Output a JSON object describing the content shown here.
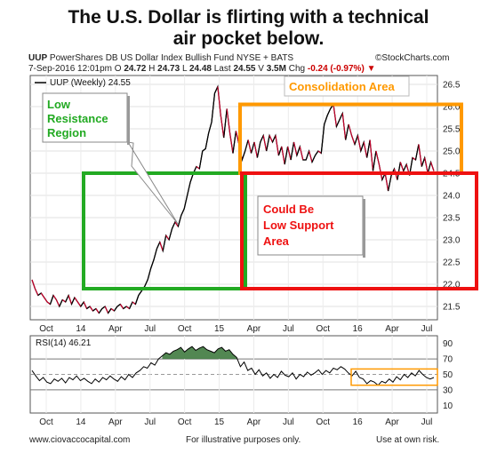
{
  "headline": {
    "line1": "The U.S. Dollar is flirting with a technical",
    "line2": "air pocket below."
  },
  "header": {
    "symbol": "UUP",
    "fund_name": "PowerShares DB US Dollar Index Bullish Fund",
    "exchange": "NYSE + BATS",
    "source": "©StockCharts.com",
    "date": "7-Sep-2016 12:01pm",
    "open_label": "O",
    "open": "24.72",
    "high_label": "H",
    "high": "24.73",
    "low_label": "L",
    "low": "24.48",
    "last_label": "Last",
    "last": "24.55",
    "volume_label": "V",
    "volume": "3.5M",
    "change_label": "Chg",
    "change": "-0.24 (-0.97%)",
    "change_arrow": "▼",
    "change_color": "#cc0000"
  },
  "chart_data": [
    {
      "type": "line",
      "legend": "UUP (Weekly) 24.55",
      "x_tick_labels": [
        "Oct",
        "14",
        "Apr",
        "Jul",
        "Oct",
        "15",
        "Apr",
        "Jul",
        "Oct",
        "16",
        "Apr",
        "Jul"
      ],
      "y_tick_labels": [
        "21.5",
        "22.0",
        "22.5",
        "23.0",
        "23.5",
        "24.0",
        "24.5",
        "25.0",
        "25.5",
        "26.0",
        "26.5"
      ],
      "ylim": [
        21.2,
        26.7
      ],
      "series": [
        {
          "name": "UUP (Weekly)",
          "values": [
            22.1,
            21.9,
            21.75,
            21.8,
            21.7,
            21.6,
            21.55,
            21.75,
            21.65,
            21.5,
            21.65,
            21.6,
            21.75,
            21.55,
            21.7,
            21.6,
            21.5,
            21.6,
            21.45,
            21.5,
            21.4,
            21.45,
            21.35,
            21.45,
            21.5,
            21.35,
            21.45,
            21.4,
            21.5,
            21.55,
            21.45,
            21.5,
            21.45,
            21.6,
            21.55,
            21.75,
            21.85,
            21.95,
            22.1,
            22.35,
            22.55,
            22.8,
            22.95,
            22.75,
            23.1,
            23.0,
            23.25,
            23.4,
            23.3,
            23.55,
            23.7,
            24.0,
            24.3,
            24.5,
            24.65,
            24.6,
            25.0,
            25.05,
            25.4,
            25.65,
            26.3,
            26.45,
            25.8,
            25.3,
            25.95,
            25.4,
            24.95,
            25.45,
            25.15,
            24.8,
            25.0,
            25.25,
            24.95,
            25.2,
            24.85,
            25.2,
            25.35,
            25.0,
            25.35,
            25.2,
            25.35,
            24.9,
            25.1,
            24.7,
            25.1,
            24.8,
            25.2,
            24.9,
            25.1,
            24.8,
            24.8,
            25.0,
            24.75,
            24.9,
            25.0,
            24.95,
            25.6,
            25.8,
            25.95,
            26.05,
            25.55,
            25.7,
            25.85,
            25.25,
            25.6,
            25.35,
            25.15,
            25.35,
            25.0,
            25.2,
            24.85,
            25.25,
            24.55,
            25.0,
            24.7,
            24.35,
            24.5,
            24.1,
            24.45,
            24.6,
            24.35,
            24.75,
            24.55,
            24.7,
            24.45,
            24.85,
            24.8,
            25.15,
            24.65,
            24.85,
            24.5,
            24.75,
            24.55
          ]
        }
      ],
      "annotations": [
        {
          "text_lines": [
            "Low",
            "Resistance",
            "Region"
          ],
          "color": "#22aa22",
          "kind": "box",
          "y_range": [
            21.9,
            24.5
          ]
        },
        {
          "text_lines": [
            "Consolidation Area"
          ],
          "color": "#ff9900",
          "kind": "box",
          "y_range": [
            24.5,
            26.05
          ]
        },
        {
          "text_lines": [
            "Could Be",
            "Low Support",
            "Area"
          ],
          "color": "#ee1111",
          "kind": "box",
          "y_range": [
            21.9,
            24.5
          ]
        }
      ]
    },
    {
      "type": "line",
      "legend": "RSI(14) 46.21",
      "y_tick_labels": [
        "10",
        "30",
        "50",
        "70",
        "90"
      ],
      "ylim": [
        0,
        100
      ],
      "reference_lines": [
        70,
        50,
        30
      ],
      "x_tick_labels": [
        "Oct",
        "14",
        "Apr",
        "Jul",
        "Oct",
        "15",
        "Apr",
        "Jul",
        "Oct",
        "16",
        "Apr",
        "Jul"
      ],
      "series": [
        {
          "name": "RSI(14)",
          "values": [
            55,
            48,
            42,
            46,
            40,
            38,
            44,
            41,
            45,
            39,
            46,
            43,
            48,
            42,
            45,
            41,
            38,
            44,
            40,
            46,
            43,
            48,
            44,
            41,
            47,
            43,
            50,
            46,
            52,
            55,
            60,
            58,
            65,
            62,
            70,
            74,
            78,
            76,
            80,
            82,
            85,
            79,
            83,
            86,
            81,
            84,
            86,
            82,
            80,
            78,
            83,
            85,
            80,
            82,
            76,
            72,
            60,
            66,
            55,
            58,
            50,
            56,
            48,
            52,
            45,
            50,
            46,
            54,
            49,
            47,
            52,
            44,
            50,
            47,
            53,
            49,
            52,
            56,
            50,
            55,
            52,
            58,
            56,
            60,
            57,
            52,
            48,
            54,
            46,
            44,
            38,
            42,
            40,
            36,
            41,
            39,
            44,
            40,
            47,
            43,
            50,
            46,
            52,
            48,
            55,
            50,
            46,
            44,
            46
          ]
        }
      ],
      "annotations": [
        {
          "kind": "box",
          "color": "#ff9900",
          "y_range": [
            36,
            57
          ]
        }
      ]
    }
  ],
  "footer": {
    "website": "www.ciovaccocapital.com",
    "disclaimer1": "For illustrative purposes only.",
    "disclaimer2": "Use at own risk."
  }
}
